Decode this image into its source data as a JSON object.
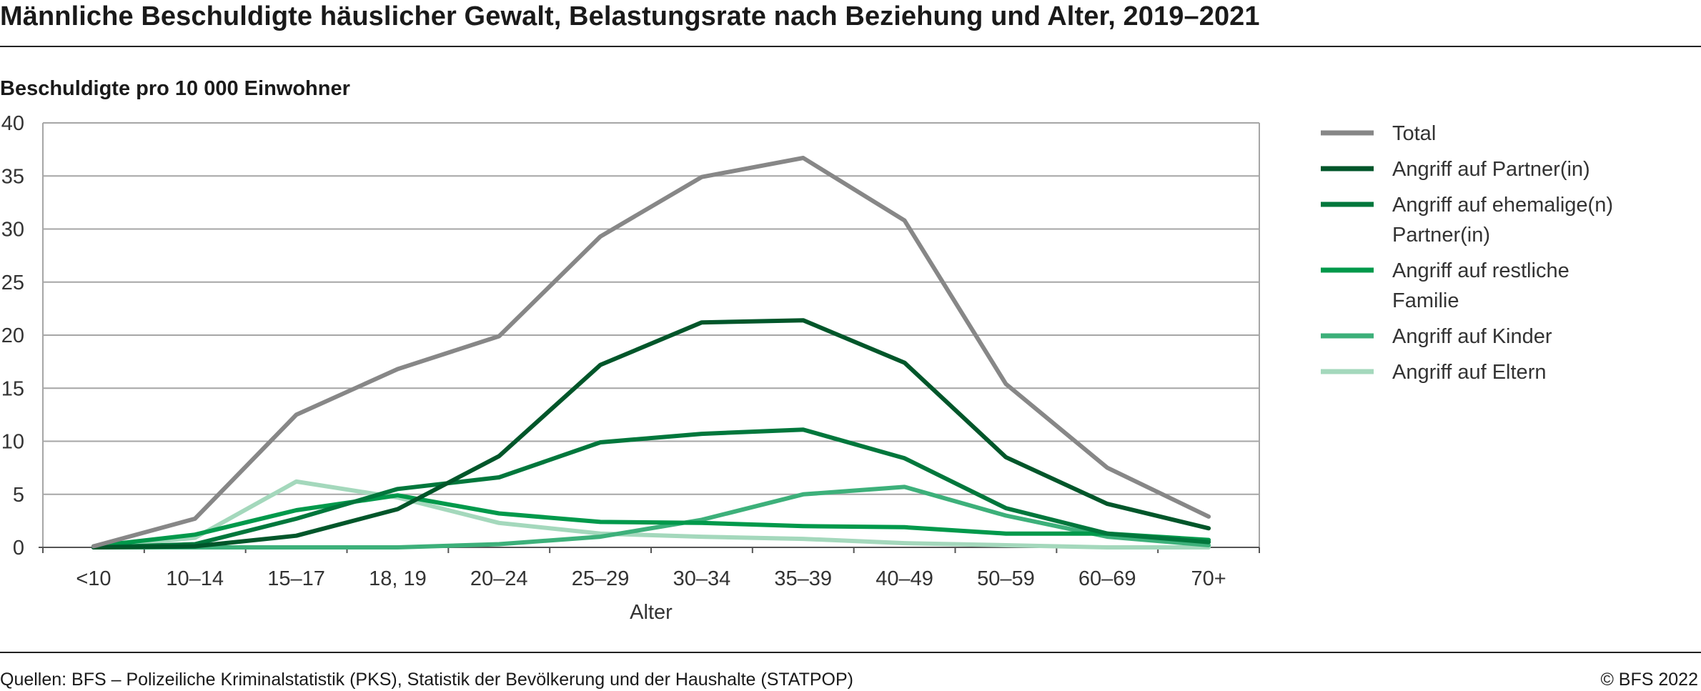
{
  "header": {
    "title": "Männliche Beschuldigte häuslicher Gewalt, Belastungsrate nach Beziehung und Alter, 2019–2021",
    "unit": "Beschuldigte pro 10 000 Einwohner"
  },
  "footer": {
    "source": "Quellen: BFS – Polizeiliche Kriminalstatistik (PKS), Statistik der Bevölkerung und der Haushalte (STATPOP)",
    "copyright": "© BFS 2022"
  },
  "chart_data": {
    "type": "line",
    "title": "Männliche Beschuldigte häuslicher Gewalt, Belastungsrate nach Beziehung und Alter, 2019–2021",
    "xlabel": "Alter",
    "ylabel": "Beschuldigte pro 10 000 Einwohner",
    "ylim": [
      0,
      40
    ],
    "yticks": [
      0,
      5,
      10,
      15,
      20,
      25,
      30,
      35,
      40
    ],
    "grid": true,
    "legend_position": "right",
    "categories": [
      "<10",
      "10–14",
      "15–17",
      "18, 19",
      "20–24",
      "25–29",
      "30–34",
      "35–39",
      "40–49",
      "50–59",
      "60–69",
      "70+"
    ],
    "series": [
      {
        "name": "Total",
        "color": "#878787",
        "values": [
          0.1,
          2.7,
          12.5,
          16.8,
          19.9,
          29.3,
          34.9,
          36.7,
          30.8,
          15.4,
          7.5,
          2.9
        ]
      },
      {
        "name": "Angriff auf Partner(in)",
        "color": "#00562a",
        "values": [
          0.0,
          0.1,
          1.1,
          3.6,
          8.6,
          17.2,
          21.2,
          21.4,
          17.4,
          8.5,
          4.1,
          1.8
        ]
      },
      {
        "name": "Angriff auf ehemalige(n) Partner(in)",
        "color": "#00773c",
        "values": [
          0.0,
          0.3,
          2.7,
          5.5,
          6.6,
          9.9,
          10.7,
          11.1,
          8.4,
          3.7,
          1.3,
          0.5
        ]
      },
      {
        "name": "Angriff auf restliche Familie",
        "color": "#00994b",
        "values": [
          0.1,
          1.2,
          3.5,
          4.9,
          3.2,
          2.4,
          2.3,
          2.0,
          1.9,
          1.3,
          1.3,
          0.7
        ]
      },
      {
        "name": "Angriff auf Kinder",
        "color": "#3db07a",
        "values": [
          0.0,
          0.0,
          0.0,
          0.0,
          0.3,
          1.0,
          2.6,
          5.0,
          5.7,
          3.0,
          1.0,
          0.2
        ]
      },
      {
        "name": "Angriff auf Eltern",
        "color": "#a4d8bc",
        "values": [
          0.0,
          0.9,
          6.2,
          4.7,
          2.3,
          1.3,
          1.0,
          0.8,
          0.4,
          0.2,
          0.0,
          0.0
        ]
      }
    ]
  }
}
